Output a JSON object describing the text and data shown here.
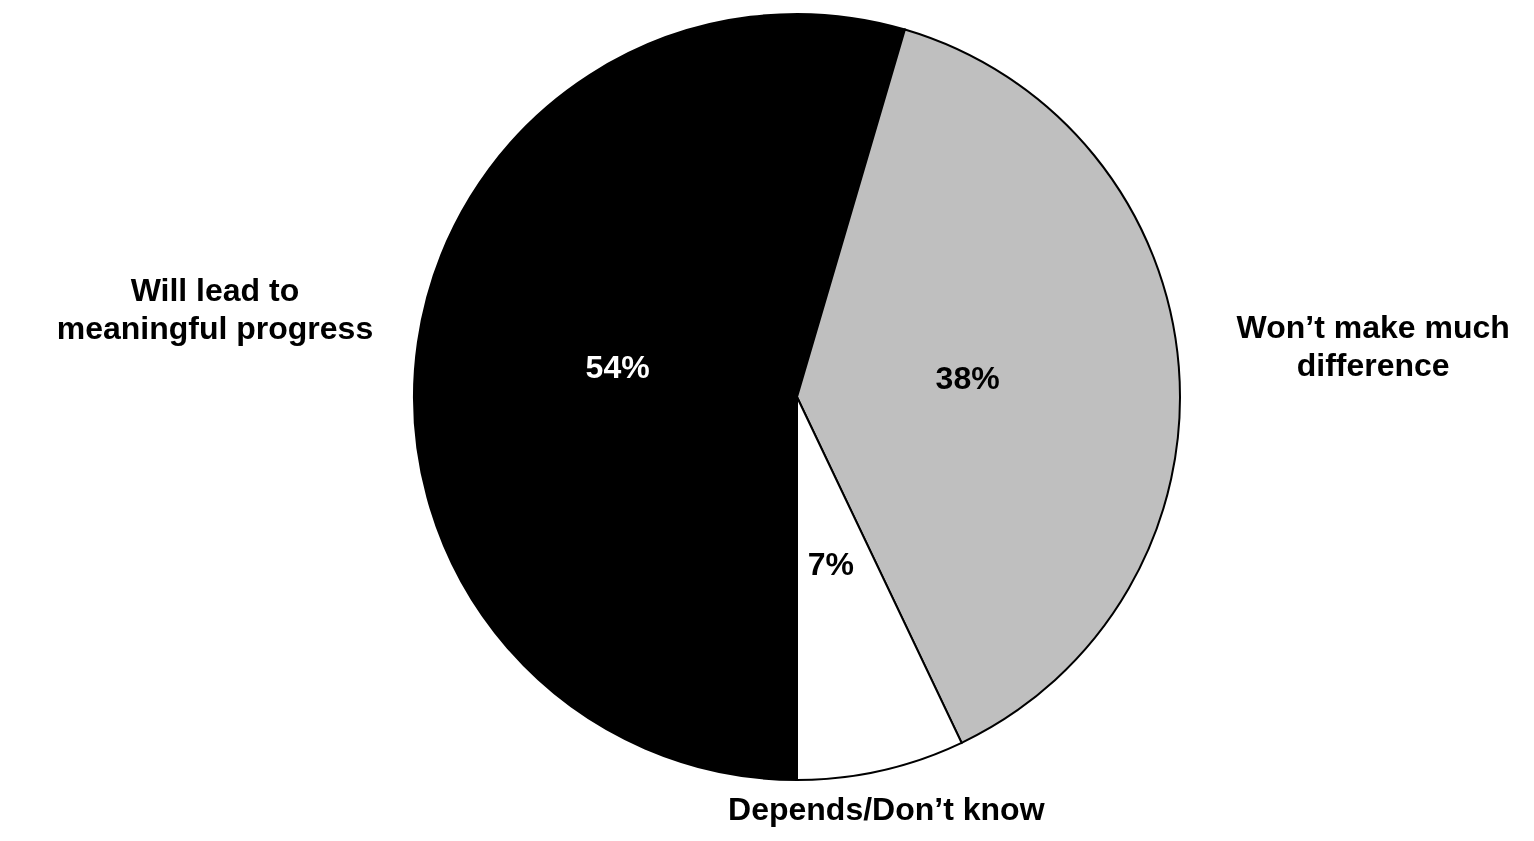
{
  "chart_data": {
    "type": "pie",
    "categories": [
      "Will lead to meaningful progress",
      "Won’t make much difference",
      "Depends/Don’t know"
    ],
    "values": [
      54,
      38,
      7
    ],
    "colors": [
      "#000000",
      "#bfbfbf",
      "#ffffff"
    ],
    "value_labels": [
      "54%",
      "38%",
      "7%"
    ]
  }
}
